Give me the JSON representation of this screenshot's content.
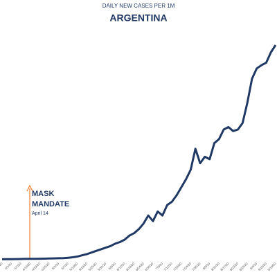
{
  "chart_data": {
    "type": "line",
    "title": "DAILY NEW CASES PER 1M",
    "subtitle": "ARGENTINA",
    "annotation": {
      "label": "MASK MANDATE",
      "sublabel": "April 14"
    },
    "categories": [
      "3/26/20",
      null,
      "4/1/20",
      null,
      "4/7/20",
      null,
      "4/13/20",
      null,
      "4/19/20",
      null,
      "4/25/20",
      null,
      "5/1/20",
      null,
      "5/7/20",
      null,
      "5/13/20",
      null,
      "5/19/20",
      null,
      "5/25/20",
      null,
      "5/31/20",
      null,
      "6/6/20",
      null,
      "6/12/20",
      null,
      "6/18/20",
      null,
      "6/24/20",
      null,
      "6/30/20",
      null,
      "7/6/20",
      null,
      "7/12/20",
      null,
      "7/18/20",
      null,
      "7/24/20",
      null,
      "7/30/20",
      null,
      "8/5/20",
      null,
      "8/11/20",
      null,
      "8/17/20",
      null,
      "8/23/20",
      null,
      "8/29/20",
      null,
      "9/4/20",
      null,
      "9/10/20",
      null,
      "9/16/20"
    ],
    "series": [
      {
        "name": "Argentina",
        "color": "#1f3864",
        "values": [
          0.5,
          0.6,
          0.7,
          0.8,
          0.9,
          1,
          1,
          1.1,
          1.2,
          1.3,
          1.5,
          1.6,
          1.8,
          2,
          2.3,
          3,
          4,
          5.5,
          7,
          9,
          11,
          13,
          15,
          17,
          20,
          22,
          25,
          30,
          33,
          38,
          45,
          55,
          48,
          60,
          55,
          68,
          72,
          80,
          90,
          100,
          112,
          138,
          120,
          128,
          125,
          145,
          150,
          162,
          165,
          160,
          162,
          170,
          195,
          225,
          238,
          242,
          245,
          258,
          267
        ]
      }
    ],
    "ylim": [
      0,
      280
    ],
    "annotation_color": "#ed7d31"
  }
}
